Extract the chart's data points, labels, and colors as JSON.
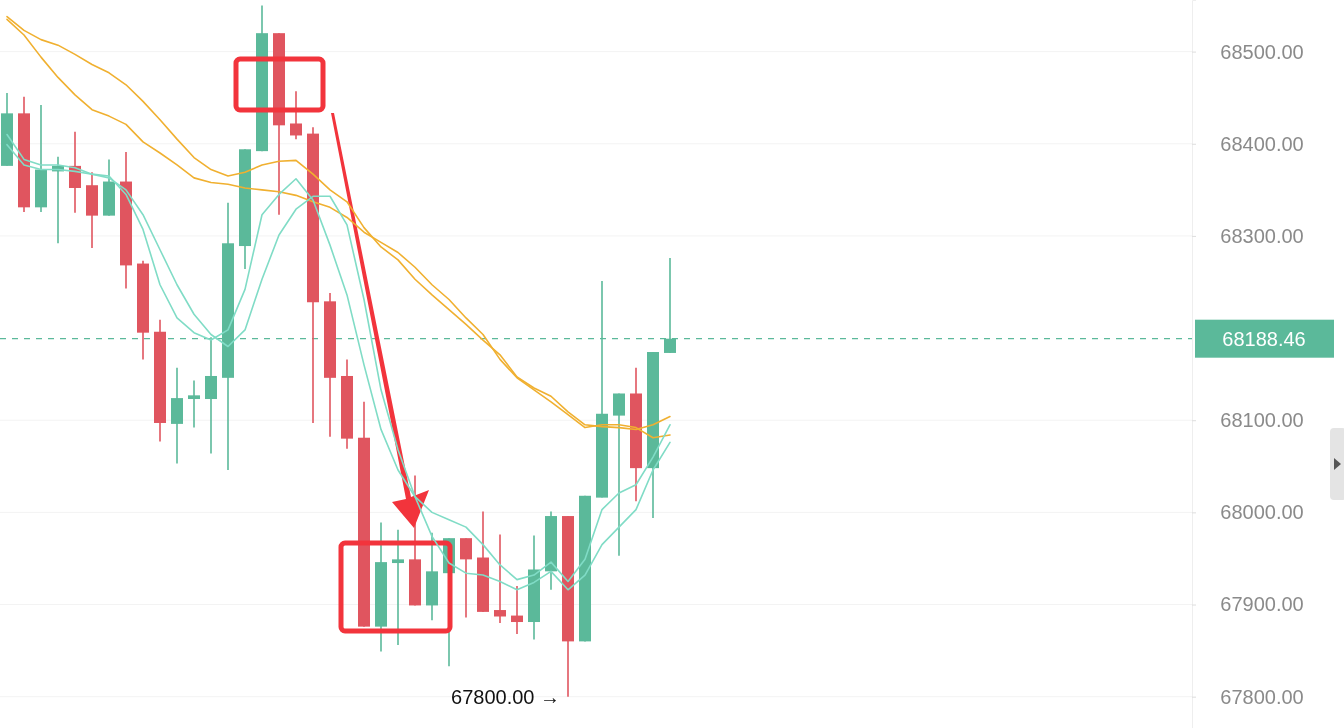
{
  "chart_data": {
    "type": "candlestick",
    "categories": [
      null,
      null,
      null,
      null,
      null,
      null,
      null,
      null,
      null,
      null,
      null,
      null,
      null,
      null,
      null,
      null,
      null,
      null,
      null,
      null,
      null,
      null,
      null,
      null,
      null,
      null,
      null,
      null,
      null,
      null,
      null,
      null,
      null,
      null,
      null,
      null,
      null,
      null,
      null,
      null
    ],
    "ohlc": [
      [
        68376,
        68455,
        68376,
        68433
      ],
      [
        68433,
        68451,
        68326,
        68331
      ],
      [
        68331,
        68442,
        68326,
        68372
      ],
      [
        68370,
        68386,
        68292,
        68376
      ],
      [
        68376,
        68413,
        68325,
        68352
      ],
      [
        68355,
        68369,
        68287,
        68322
      ],
      [
        68322,
        68383,
        68322,
        68359
      ],
      [
        68359,
        68391,
        68243,
        68268
      ],
      [
        68270,
        68273,
        68166,
        68195
      ],
      [
        68196,
        68209,
        68077,
        68097
      ],
      [
        68096,
        68157,
        68053,
        68124
      ],
      [
        68123,
        68143,
        68092,
        68127
      ],
      [
        68123,
        68190,
        68064,
        68148
      ],
      [
        68146,
        68336,
        68046,
        68292
      ],
      [
        68289,
        68394,
        68264,
        68394
      ],
      [
        68392,
        68550,
        68392,
        68520
      ],
      [
        68520,
        68520,
        68323,
        68420
      ],
      [
        68422,
        68457,
        68405,
        68409
      ],
      [
        68411,
        68418,
        68097,
        68228
      ],
      [
        68229,
        68238,
        68082,
        68146
      ],
      [
        68148,
        68166,
        68069,
        68080
      ],
      [
        68081,
        68120,
        67876,
        67876
      ],
      [
        67876,
        67989,
        67849,
        67946
      ],
      [
        67945,
        67981,
        67856,
        67949
      ],
      [
        67949,
        68040,
        67899,
        67899
      ],
      [
        67899,
        67978,
        67883,
        67936
      ],
      [
        67934,
        67972,
        67833,
        67972
      ],
      [
        67972,
        67972,
        67886,
        67949
      ],
      [
        67951,
        68001,
        67892,
        67892
      ],
      [
        67894,
        67976,
        67880,
        67887
      ],
      [
        67888,
        67920,
        67868,
        67881
      ],
      [
        67881,
        67975,
        67862,
        67938
      ],
      [
        67936,
        68001,
        67916,
        67996
      ],
      [
        67996,
        67996,
        67800,
        67860
      ],
      [
        67860,
        68018,
        67860,
        68018
      ],
      [
        68016,
        68251,
        68016,
        68107
      ],
      [
        68105,
        68129,
        67953,
        68129
      ],
      [
        68129,
        68157,
        68012,
        68048
      ],
      [
        68048,
        68174,
        67994,
        68174
      ],
      [
        68173,
        68276,
        68173,
        68188.46
      ]
    ],
    "colors": [
      "#5bb99a",
      "#e0555f",
      "#5bb99a",
      "#5bb99a",
      "#e0555f",
      "#e0555f",
      "#5bb99a",
      "#e0555f",
      "#e0555f",
      "#e0555f",
      "#5bb99a",
      "#5bb99a",
      "#5bb99a",
      "#5bb99a",
      "#5bb99a",
      "#5bb99a",
      "#e0555f",
      "#e0555f",
      "#e0555f",
      "#e0555f",
      "#e0555f",
      "#e0555f",
      "#5bb99a",
      "#5bb99a",
      "#e0555f",
      "#5bb99a",
      "#5bb99a",
      "#e0555f",
      "#e0555f",
      "#e0555f",
      "#e0555f",
      "#5bb99a",
      "#5bb99a",
      "#e0555f",
      "#5bb99a",
      "#5bb99a",
      "#5bb99a",
      "#e0555f",
      "#5bb99a",
      "#5bb99a"
    ],
    "series": [
      {
        "type": "line",
        "color": "#f0b030",
        "values": [
          68538,
          68523,
          68513,
          68507,
          68497,
          68486,
          68477,
          68464,
          68446,
          68426,
          68405,
          68385,
          68372,
          68365,
          68369,
          68377,
          68381,
          68382,
          68367,
          68350,
          68337,
          68309,
          68288,
          68274,
          68253,
          68236,
          68220,
          68204,
          68187,
          68171,
          68147,
          68135,
          68126,
          68109,
          68095,
          68093,
          68092,
          68090,
          68095,
          68104
        ]
      },
      {
        "type": "line",
        "color": "#f0b030",
        "values": [
          68535,
          68518,
          68494,
          68472,
          68453,
          68437,
          68430,
          68421,
          68402,
          68390,
          68377,
          68363,
          68358,
          68356,
          68352,
          68350,
          68348,
          68344,
          68337,
          68331,
          68320,
          68304,
          68293,
          68282,
          68266,
          68247,
          68231,
          68211,
          68193,
          68166,
          68146,
          68133,
          68120,
          68106,
          68092,
          68095,
          68095,
          68092,
          68081,
          68084
        ]
      },
      {
        "type": "line",
        "color": "#80dcc6",
        "values": [
          68410,
          68383,
          68377,
          68377,
          68374,
          68367,
          68365,
          68345,
          68307,
          68247,
          68211,
          68195,
          68187,
          68198,
          68242,
          68323,
          68345,
          68362,
          68339,
          68290,
          68236,
          68160,
          68090,
          68046,
          68017,
          68000,
          67992,
          67984,
          67965,
          67943,
          67927,
          67932,
          67946,
          67925,
          67949,
          68003,
          68021,
          68030,
          68060,
          68095
        ]
      },
      {
        "type": "line",
        "color": "#80dcc6",
        "values": [
          68399,
          68377,
          68372,
          68372,
          68370,
          68367,
          68363,
          68350,
          68323,
          68285,
          68247,
          68215,
          68193,
          68180,
          68198,
          68253,
          68301,
          68329,
          68343,
          68343,
          68312,
          68231,
          68133,
          68068,
          68017,
          67974,
          67945,
          67934,
          67932,
          67925,
          67916,
          67924,
          67936,
          67916,
          67932,
          67965,
          67984,
          68003,
          68046,
          68076
        ]
      }
    ],
    "ylim": [
      67766,
      68556
    ],
    "yticks": [
      {
        "value": 67800,
        "label": "67800.00"
      },
      {
        "value": 67900,
        "label": "67900.00"
      },
      {
        "value": 68000,
        "label": "68000.00"
      },
      {
        "value": 68100,
        "label": "68100.00"
      },
      {
        "value": 68300,
        "label": "68300.00"
      },
      {
        "value": 68400,
        "label": "68400.00"
      },
      {
        "value": 68500,
        "label": "68500.00"
      }
    ],
    "tick_labels": "y",
    "grid": "y",
    "marker": "none",
    "line_style": "solid",
    "ref_lines": [
      {
        "axis": "y",
        "value": 68188.46,
        "label": "68188.46",
        "color": "#5bb99a",
        "line_style": "dashed"
      }
    ],
    "annotations": [
      "67800.00 →"
    ]
  }
}
